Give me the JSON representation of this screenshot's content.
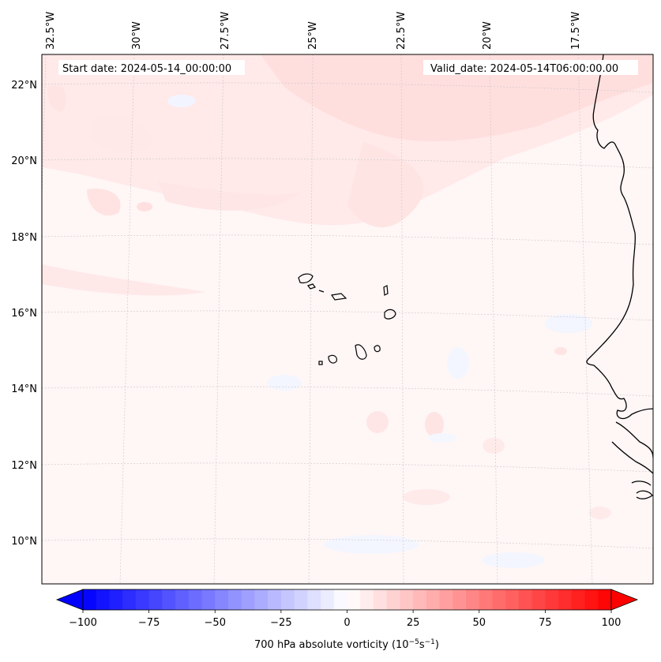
{
  "map": {
    "start_date": "Start date: 2024-05-14_00:00:00",
    "valid_date": "Valid_date: 2024-05-14T06:00:00.00",
    "lon_labels": [
      "32.5°W",
      "30°W",
      "27.5°W",
      "25°W",
      "22.5°W",
      "20°W",
      "17.5°W"
    ],
    "lat_labels": [
      "22°N",
      "20°N",
      "18°N",
      "16°N",
      "14°N",
      "12°N",
      "10°N"
    ]
  },
  "colorbar": {
    "label": "700 hPa absolute vorticity (10",
    "label_exp1": "−5",
    "label_mid": "s",
    "label_exp2": "−1",
    "label_end": ")",
    "ticks": [
      "−100",
      "−75",
      "−50",
      "−25",
      "0",
      "25",
      "50",
      "75",
      "100"
    ]
  }
}
